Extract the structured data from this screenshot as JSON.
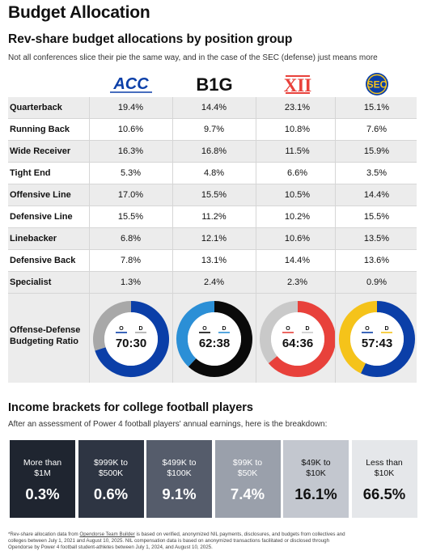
{
  "page_title": "Budget Allocation",
  "section1": {
    "title": "Rev-share budget allocations by position group",
    "subtitle": "Not all conferences slice their pie the same way, and in the case of the SEC (defense) just means more"
  },
  "section2": {
    "title": "Income brackets for college football players",
    "subtitle": "After an assessment of Power 4 football players' annual earnings, here is the breakdown:"
  },
  "footnote": {
    "line1_prefix": "*Rev-share allocation data from ",
    "line1_link": "Opendorse Team Builder",
    "line1_rest": " is based on verified, anonymized NIL payments, disclosures, and budgets from collectives and",
    "line2": "colleges between July 1, 2021 and August 10, 2025. NIL compensation data is based on anonymized transactions facilitated or disclosed through",
    "line3": "Opendorse by Power 4 football student-athletes between July 1, 2024, and August 10, 2025."
  },
  "chart_data": [
    {
      "type": "table",
      "columns": [
        {
          "logo_text": "ACC",
          "logo_icon": "acc-logo-icon",
          "color": "#0b3fa8"
        },
        {
          "logo_text": "B1G",
          "logo_icon": "big-ten-logo-icon",
          "color": "#111111"
        },
        {
          "logo_text": "XII",
          "logo_icon": "big-12-logo-icon",
          "color": "#e8413b"
        },
        {
          "logo_text": "SEC",
          "logo_icon": "sec-logo-icon",
          "color": "#0b3fa8"
        }
      ],
      "rows": [
        {
          "label": "Quarterback",
          "values": [
            "19.4%",
            "14.4%",
            "23.1%",
            "15.1%"
          ]
        },
        {
          "label": "Running Back",
          "values": [
            "10.6%",
            "9.7%",
            "10.8%",
            "7.6%"
          ]
        },
        {
          "label": "Wide Receiver",
          "values": [
            "16.3%",
            "16.8%",
            "11.5%",
            "15.9%"
          ]
        },
        {
          "label": "Tight End",
          "values": [
            "5.3%",
            "4.8%",
            "6.6%",
            "3.5%"
          ]
        },
        {
          "label": "Offensive Line",
          "values": [
            "17.0%",
            "15.5%",
            "10.5%",
            "14.4%"
          ]
        },
        {
          "label": "Defensive Line",
          "values": [
            "15.5%",
            "11.2%",
            "10.2%",
            "15.5%"
          ]
        },
        {
          "label": "Linebacker",
          "values": [
            "6.8%",
            "12.1%",
            "10.6%",
            "13.5%"
          ]
        },
        {
          "label": "Defensive Back",
          "values": [
            "7.8%",
            "13.1%",
            "14.4%",
            "13.6%"
          ]
        },
        {
          "label": "Specialist",
          "values": [
            "1.3%",
            "2.4%",
            "2.3%",
            "0.9%"
          ]
        }
      ]
    },
    {
      "type": "pie",
      "title": "Offense-Defense Budgeting Ratio",
      "labels": [
        "O",
        "D"
      ],
      "series": [
        {
          "values": [
            70,
            30
          ],
          "ratio_text": "70:30",
          "colors": [
            "#0b3fa8",
            "#a8a8a8"
          ]
        },
        {
          "values": [
            62,
            38
          ],
          "ratio_text": "62:38",
          "colors": [
            "#0a0a0a",
            "#2b8fd6"
          ]
        },
        {
          "values": [
            64,
            36
          ],
          "ratio_text": "64:36",
          "colors": [
            "#e8413b",
            "#c9c9c9"
          ]
        },
        {
          "values": [
            57,
            43
          ],
          "ratio_text": "57:43",
          "colors": [
            "#0b3fa8",
            "#f5c31a"
          ]
        }
      ]
    },
    {
      "type": "bar",
      "categories": [
        "More than $1M",
        "$999K to $500K",
        "$499K to $100K",
        "$99K to $50K",
        "$49K to $10K",
        "Less than $10K"
      ],
      "category_lines": [
        [
          "More than",
          "$1M"
        ],
        [
          "$999K to",
          "$500K"
        ],
        [
          "$499K to",
          "$100K"
        ],
        [
          "$99K to",
          "$50K"
        ],
        [
          "$49K to",
          "$10K"
        ],
        [
          "Less than",
          "$10K"
        ]
      ],
      "values": [
        0.3,
        0.6,
        9.1,
        7.4,
        16.1,
        66.5
      ],
      "value_labels": [
        "0.3%",
        "0.6%",
        "9.1%",
        "7.4%",
        "16.1%",
        "66.5%"
      ],
      "colors": [
        "#1f2530",
        "#2e3543",
        "#555c6b",
        "#9aa0ab",
        "#c3c7cf",
        "#e5e7ea"
      ]
    }
  ]
}
